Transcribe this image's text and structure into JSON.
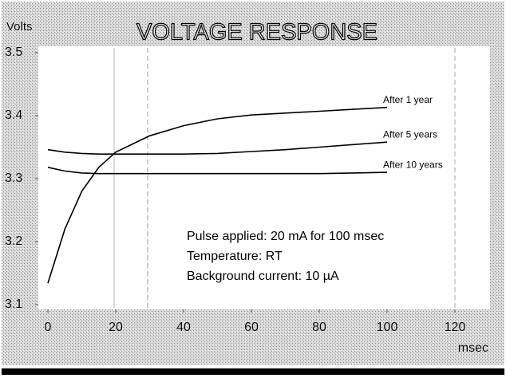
{
  "chart_data": {
    "type": "line",
    "title": "VOLTAGE RESPONSE",
    "y_label": "Volts",
    "x_label": "msec",
    "annotations": [
      "Pulse applied: 20 mA for 100 msec",
      "Temperature: RT",
      "Background current: 10 µA"
    ],
    "x": [
      0,
      5,
      10,
      15,
      20,
      30,
      40,
      50,
      60,
      70,
      80,
      90,
      100
    ],
    "series": [
      {
        "name": "After 1 year",
        "color": "#000000",
        "values": [
          3.134,
          3.22,
          3.28,
          3.318,
          3.342,
          3.368,
          3.384,
          3.395,
          3.401,
          3.404,
          3.407,
          3.41,
          3.413
        ]
      },
      {
        "name": "After 5 years",
        "color": "#000000",
        "values": [
          3.346,
          3.342,
          3.34,
          3.339,
          3.339,
          3.339,
          3.339,
          3.34,
          3.343,
          3.346,
          3.35,
          3.354,
          3.358
        ]
      },
      {
        "name": "After 10 years",
        "color": "#000000",
        "values": [
          3.318,
          3.312,
          3.309,
          3.308,
          3.308,
          3.308,
          3.308,
          3.308,
          3.308,
          3.308,
          3.308,
          3.309,
          3.31
        ]
      }
    ],
    "xlim": [
      0,
      120
    ],
    "xticks": [
      0,
      20,
      40,
      60,
      80,
      100,
      120
    ],
    "ylim": [
      3.1,
      3.5
    ],
    "yticks": [
      3.1,
      3.2,
      3.3,
      3.4,
      3.5
    ]
  }
}
